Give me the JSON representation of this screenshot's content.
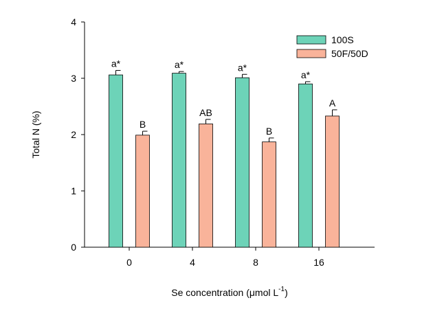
{
  "chart_data": {
    "type": "bar",
    "title": "",
    "xlabel": "Se concentration (μmol L",
    "xlabel_sup": "-1",
    "xlabel_suffix": ")",
    "ylabel": "Total N (%)",
    "categories": [
      "0",
      "4",
      "8",
      "16"
    ],
    "ylim": [
      0,
      4
    ],
    "yticks": [
      "0",
      "1",
      "2",
      "3",
      "4"
    ],
    "grid": false,
    "legend_position": "top-right",
    "series": [
      {
        "name": "100S",
        "color": "#6dd3b8",
        "values": [
          3.06,
          3.09,
          3.01,
          2.9
        ],
        "errors": [
          0.08,
          0.03,
          0.06,
          0.04
        ],
        "labels": [
          "a*",
          "a*",
          "a*",
          "a*"
        ]
      },
      {
        "name": "50F/50D",
        "color": "#f9b39a",
        "values": [
          1.99,
          2.19,
          1.87,
          2.33
        ],
        "errors": [
          0.07,
          0.08,
          0.07,
          0.11
        ],
        "labels": [
          "B",
          "AB",
          "B",
          "A"
        ]
      }
    ]
  }
}
